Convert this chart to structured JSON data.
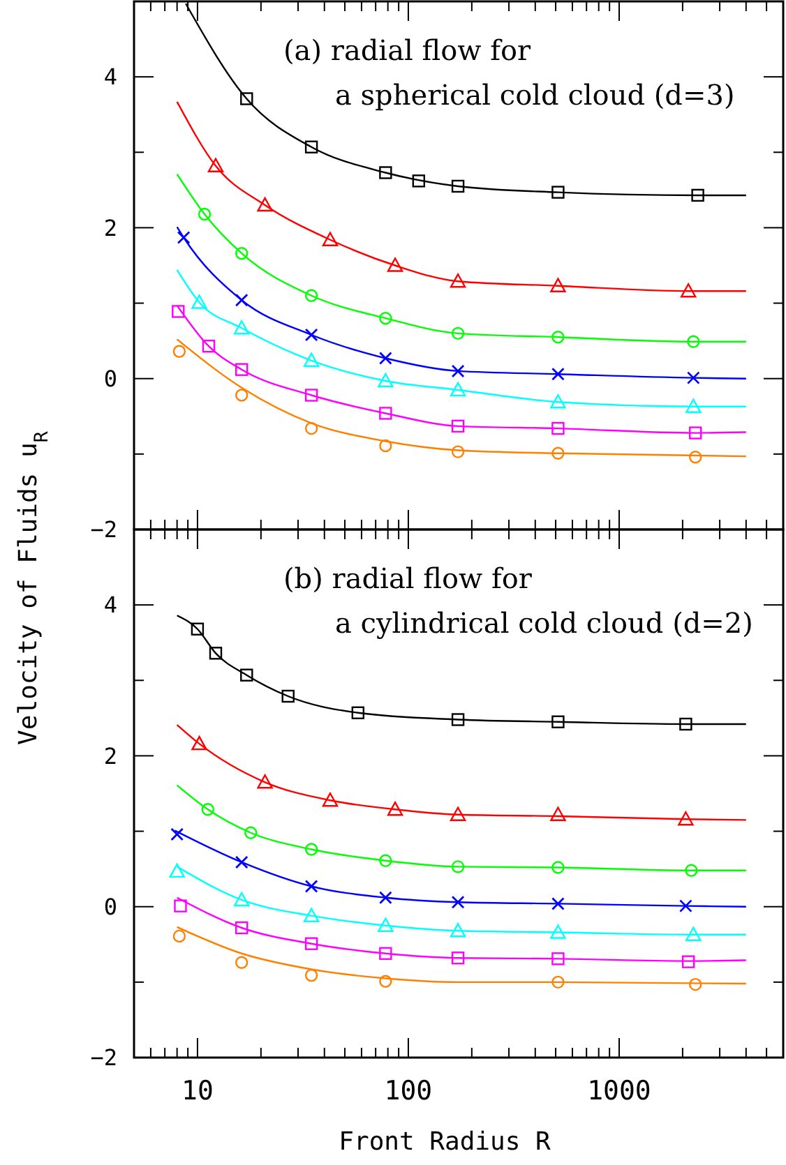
{
  "chart_data": [
    {
      "type": "scatter",
      "annotations": [
        "(a) radial flow for",
        "a spherical cold cloud (d=3)"
      ],
      "ylabel": "Velocity of Fluids u$_{R}$",
      "log": "x",
      "xlim": [
        5,
        6000
      ],
      "xticks": [
        10,
        100,
        1000
      ],
      "ylim": [
        -2,
        5
      ],
      "yticks": [
        {
          "value": -2,
          "label": "−2"
        },
        {
          "value": -1,
          "label": null
        },
        0,
        {
          "value": 1,
          "label": null
        },
        2,
        {
          "value": 3,
          "label": null
        },
        4
      ],
      "tick_labels": "y",
      "series": [
        {
          "type": "line",
          "color": "#000000",
          "x": [
            8.8,
            17.1,
            34.7,
            78,
            172,
            513,
            2360,
            4000
          ],
          "values": [
            4.97,
            3.71,
            3.07,
            2.73,
            2.55,
            2.47,
            2.43,
            2.43
          ]
        },
        {
          "type": "line",
          "color": "#ff0000",
          "x": [
            8,
            12.2,
            20.9,
            42.6,
            86.6,
            172,
            513,
            2130,
            4000
          ],
          "values": [
            3.67,
            2.82,
            2.3,
            1.84,
            1.5,
            1.29,
            1.23,
            1.16,
            1.16
          ]
        },
        {
          "type": "line",
          "color": "#00ff00",
          "x": [
            8,
            10.8,
            16.2,
            34.7,
            78,
            172,
            513,
            2250,
            4000
          ],
          "values": [
            2.71,
            2.18,
            1.66,
            1.1,
            0.8,
            0.6,
            0.55,
            0.49,
            0.49
          ]
        },
        {
          "type": "line",
          "color": "#0000ff",
          "x": [
            8,
            8.6,
            16.2,
            34.7,
            78,
            172,
            513,
            2250,
            4000
          ],
          "values": [
            2.01,
            1.87,
            1.04,
            0.58,
            0.27,
            0.1,
            0.06,
            0.01,
            0
          ]
        },
        {
          "type": "line",
          "color": "#00ffff",
          "x": [
            8,
            10.2,
            16.2,
            34.7,
            78,
            172,
            513,
            2250,
            4000
          ],
          "values": [
            1.44,
            1.01,
            0.67,
            0.24,
            -0.03,
            -0.15,
            -0.31,
            -0.37,
            -0.37
          ]
        },
        {
          "type": "line",
          "color": "#ff00ff",
          "x": [
            8,
            11.3,
            16.2,
            34.7,
            78,
            172,
            513,
            2300,
            4000
          ],
          "values": [
            0.97,
            0.43,
            0.12,
            -0.22,
            -0.46,
            -0.63,
            -0.66,
            -0.72,
            -0.71
          ]
        },
        {
          "type": "line",
          "color": "#ff8000",
          "x": [
            8,
            16.2,
            34.7,
            78,
            172,
            513,
            4000
          ],
          "values": [
            0.52,
            -0.12,
            -0.59,
            -0.83,
            -0.95,
            -0.99,
            -1.03
          ]
        },
        {
          "marker": "square",
          "color": "#000000",
          "x": [
            17.1,
            34.7,
            78,
            112,
            172,
            513,
            2360
          ],
          "values": [
            3.71,
            3.07,
            2.73,
            2.62,
            2.55,
            2.47,
            2.43
          ]
        },
        {
          "marker": "triangle",
          "color": "#ff0000",
          "x": [
            12.2,
            20.9,
            42.6,
            86.6,
            172,
            513,
            2130
          ],
          "values": [
            2.82,
            2.3,
            1.84,
            1.5,
            1.29,
            1.23,
            1.16
          ]
        },
        {
          "marker": "circle",
          "color": "#00ff00",
          "x": [
            10.8,
            16.2,
            34.7,
            78,
            172,
            513,
            2250
          ],
          "values": [
            2.18,
            1.66,
            1.1,
            0.8,
            0.6,
            0.55,
            0.49
          ]
        },
        {
          "marker": "cross",
          "color": "#0000ff",
          "x": [
            8.6,
            16.2,
            34.7,
            78,
            172,
            513,
            2250
          ],
          "values": [
            1.87,
            1.04,
            0.58,
            0.27,
            0.1,
            0.06,
            0.01
          ]
        },
        {
          "marker": "triangle",
          "color": "#00ffff",
          "x": [
            10.2,
            16.2,
            34.7,
            78,
            172,
            513,
            2250
          ],
          "values": [
            1.01,
            0.67,
            0.24,
            -0.03,
            -0.15,
            -0.31,
            -0.37
          ]
        },
        {
          "marker": "square",
          "color": "#ff00ff",
          "x": [
            8.1,
            11.3,
            16.2,
            34.7,
            78,
            172,
            513,
            2300
          ],
          "values": [
            0.89,
            0.43,
            0.12,
            -0.22,
            -0.46,
            -0.63,
            -0.66,
            -0.72
          ]
        },
        {
          "marker": "circle",
          "color": "#ff8000",
          "x": [
            8.2,
            16.2,
            34.7,
            78,
            172,
            513,
            2300
          ],
          "values": [
            0.36,
            -0.22,
            -0.66,
            -0.89,
            -0.97,
            -0.99,
            -1.04
          ]
        }
      ]
    },
    {
      "type": "scatter",
      "annotations": [
        "(b) radial flow for",
        "a cylindrical cold cloud (d=2)"
      ],
      "xlabel": "Front Radius R",
      "log": "x",
      "xlim": [
        5,
        6000
      ],
      "xticks": [
        10,
        100,
        1000
      ],
      "ylim": [
        -2,
        5
      ],
      "yticks": [
        {
          "value": -2,
          "label": "−2"
        },
        {
          "value": -1,
          "label": null
        },
        0,
        {
          "value": 1,
          "label": null
        },
        2,
        {
          "value": 3,
          "label": null
        },
        4
      ],
      "series": [
        {
          "type": "line",
          "color": "#000000",
          "x": [
            8,
            10,
            12.2,
            17.1,
            26.9,
            57.7,
            172,
            513,
            2070,
            4000
          ],
          "values": [
            3.86,
            3.68,
            3.36,
            3.07,
            2.79,
            2.57,
            2.48,
            2.45,
            2.42,
            2.42
          ]
        },
        {
          "type": "line",
          "color": "#ff0000",
          "x": [
            8,
            10.2,
            20.9,
            42.6,
            86.6,
            172,
            513,
            2070,
            4000
          ],
          "values": [
            2.41,
            2.16,
            1.65,
            1.41,
            1.29,
            1.22,
            1.2,
            1.16,
            1.15
          ]
        },
        {
          "type": "line",
          "color": "#00ff00",
          "x": [
            8,
            11.2,
            17.9,
            34.7,
            78,
            172,
            513,
            2200,
            4000
          ],
          "values": [
            1.61,
            1.29,
            0.98,
            0.76,
            0.61,
            0.53,
            0.52,
            0.48,
            0.48
          ]
        },
        {
          "type": "line",
          "color": "#0000ff",
          "x": [
            7.8,
            16.2,
            34.7,
            78,
            172,
            513,
            2070,
            4000
          ],
          "values": [
            1.01,
            0.59,
            0.27,
            0.12,
            0.06,
            0.04,
            0.01,
            0
          ]
        },
        {
          "type": "line",
          "color": "#00ffff",
          "x": [
            8,
            16.2,
            34.7,
            78,
            172,
            513,
            2250,
            4000
          ],
          "values": [
            0.53,
            0.09,
            -0.12,
            -0.25,
            -0.32,
            -0.34,
            -0.37,
            -0.37
          ]
        },
        {
          "type": "line",
          "color": "#ff00ff",
          "x": [
            8,
            16.2,
            34.7,
            78,
            172,
            513,
            2130,
            4000
          ],
          "values": [
            0.12,
            -0.28,
            -0.49,
            -0.62,
            -0.68,
            -0.69,
            -0.72,
            -0.71
          ]
        },
        {
          "type": "line",
          "color": "#ff8000",
          "x": [
            8,
            16.2,
            34.7,
            78,
            172,
            513,
            4000
          ],
          "values": [
            -0.27,
            -0.62,
            -0.83,
            -0.95,
            -1,
            -1,
            -1.02
          ]
        },
        {
          "marker": "square",
          "color": "#000000",
          "x": [
            10,
            12.2,
            17.1,
            26.9,
            57.7,
            172,
            513,
            2070
          ],
          "values": [
            3.68,
            3.36,
            3.07,
            2.79,
            2.57,
            2.48,
            2.45,
            2.42
          ]
        },
        {
          "marker": "triangle",
          "color": "#ff0000",
          "x": [
            10.2,
            20.9,
            42.6,
            86.6,
            172,
            513,
            2070
          ],
          "values": [
            2.16,
            1.65,
            1.41,
            1.29,
            1.22,
            1.22,
            1.16
          ]
        },
        {
          "marker": "circle",
          "color": "#00ff00",
          "x": [
            11.2,
            17.9,
            34.7,
            78,
            172,
            513,
            2200
          ],
          "values": [
            1.29,
            0.98,
            0.76,
            0.61,
            0.53,
            0.52,
            0.48
          ]
        },
        {
          "marker": "cross",
          "color": "#0000ff",
          "x": [
            8,
            16.2,
            34.7,
            78,
            172,
            513,
            2070
          ],
          "values": [
            0.96,
            0.59,
            0.27,
            0.12,
            0.06,
            0.04,
            0.01
          ]
        },
        {
          "marker": "triangle",
          "color": "#00ffff",
          "x": [
            8,
            16.2,
            34.7,
            78,
            172,
            513,
            2250
          ],
          "values": [
            0.47,
            0.09,
            -0.12,
            -0.25,
            -0.32,
            -0.34,
            -0.37
          ]
        },
        {
          "marker": "square",
          "color": "#ff00ff",
          "x": [
            8.3,
            16.2,
            34.7,
            78,
            172,
            513,
            2130
          ],
          "values": [
            0.01,
            -0.28,
            -0.49,
            -0.62,
            -0.68,
            -0.69,
            -0.73
          ]
        },
        {
          "marker": "circle",
          "color": "#ff8000",
          "x": [
            8.2,
            16.2,
            34.7,
            78,
            513,
            2300
          ],
          "values": [
            -0.39,
            -0.74,
            -0.91,
            -0.99,
            -1,
            -1.03
          ]
        }
      ]
    }
  ]
}
